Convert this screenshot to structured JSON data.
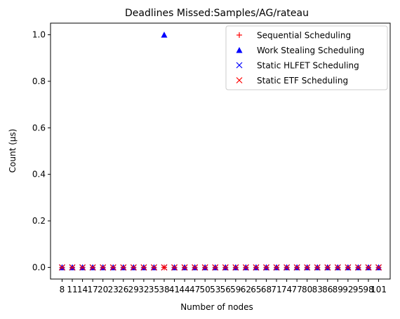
{
  "chart_data": {
    "type": "scatter",
    "title": "Deadlines Missed:Samples/AG/rateau",
    "xlabel": "Number of nodes",
    "ylabel": "Count (µs)",
    "categories": [
      "8",
      "11",
      "14",
      "17",
      "20",
      "23",
      "26",
      "29",
      "32",
      "35",
      "38",
      "41",
      "44",
      "47",
      "50",
      "53",
      "56",
      "59",
      "62",
      "65",
      "68",
      "71",
      "74",
      "77",
      "80",
      "83",
      "86",
      "89",
      "92",
      "95",
      "98",
      "101"
    ],
    "ylim": [
      -0.05,
      1.05
    ],
    "yticks": [
      "0.0",
      "0.2",
      "0.4",
      "0.6",
      "0.8",
      "1.0"
    ],
    "grid": false,
    "legend_position": "top-right",
    "series": [
      {
        "name": "Sequential Scheduling",
        "marker": "plus",
        "color": "#ff0000",
        "values": [
          0,
          0,
          0,
          0,
          0,
          0,
          0,
          0,
          0,
          0,
          0,
          0,
          0,
          0,
          0,
          0,
          0,
          0,
          0,
          0,
          0,
          0,
          0,
          0,
          0,
          0,
          0,
          0,
          0,
          0,
          0,
          0
        ]
      },
      {
        "name": "Work Stealing Scheduling",
        "marker": "triangle",
        "color": "#0000ff",
        "values": [
          0,
          0,
          0,
          0,
          0,
          0,
          0,
          0,
          0,
          0,
          1,
          0,
          0,
          0,
          0,
          0,
          0,
          0,
          0,
          0,
          0,
          0,
          0,
          0,
          0,
          0,
          0,
          0,
          0,
          0,
          0,
          0
        ]
      },
      {
        "name": "Static HLFET Scheduling",
        "marker": "x",
        "color": "#0000ff",
        "values": [
          0,
          0,
          0,
          0,
          0,
          0,
          0,
          0,
          0,
          0,
          0,
          0,
          0,
          0,
          0,
          0,
          0,
          0,
          0,
          0,
          0,
          0,
          0,
          0,
          0,
          0,
          0,
          0,
          0,
          0,
          0,
          0
        ]
      },
      {
        "name": "Static ETF Scheduling",
        "marker": "x",
        "color": "#ff0000",
        "values": [
          0,
          0,
          0,
          0,
          0,
          0,
          0,
          0,
          0,
          0,
          0,
          0,
          0,
          0,
          0,
          0,
          0,
          0,
          0,
          0,
          0,
          0,
          0,
          0,
          0,
          0,
          0,
          0,
          0,
          0,
          0,
          0
        ]
      }
    ]
  }
}
